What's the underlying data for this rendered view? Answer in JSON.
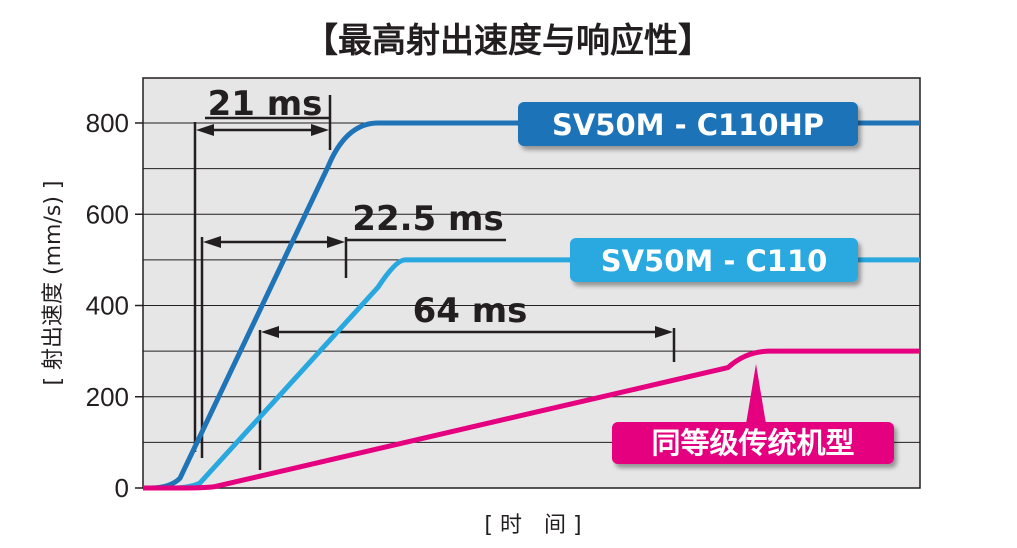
{
  "chart_data": {
    "type": "line",
    "title": "【最高射出速度与响应性】",
    "ylabel": "[ 射出速度 (mm/s) ]",
    "xlabel": "[ 时　间 ]",
    "ylim": [
      0,
      800
    ],
    "yticks": [
      0,
      200,
      400,
      600,
      800
    ],
    "grid": true,
    "series": [
      {
        "name": "SV50M - C110HP",
        "color": "#1f73b7",
        "max_speed": 800,
        "response_time_label": "21 ms"
      },
      {
        "name": "SV50M - C110",
        "color": "#29a8e0",
        "max_speed": 500,
        "response_time_label": "22.5 ms"
      },
      {
        "name": "同等级传统机型",
        "color": "#e4007f",
        "max_speed": 300,
        "response_time_label": "64 ms"
      }
    ]
  }
}
